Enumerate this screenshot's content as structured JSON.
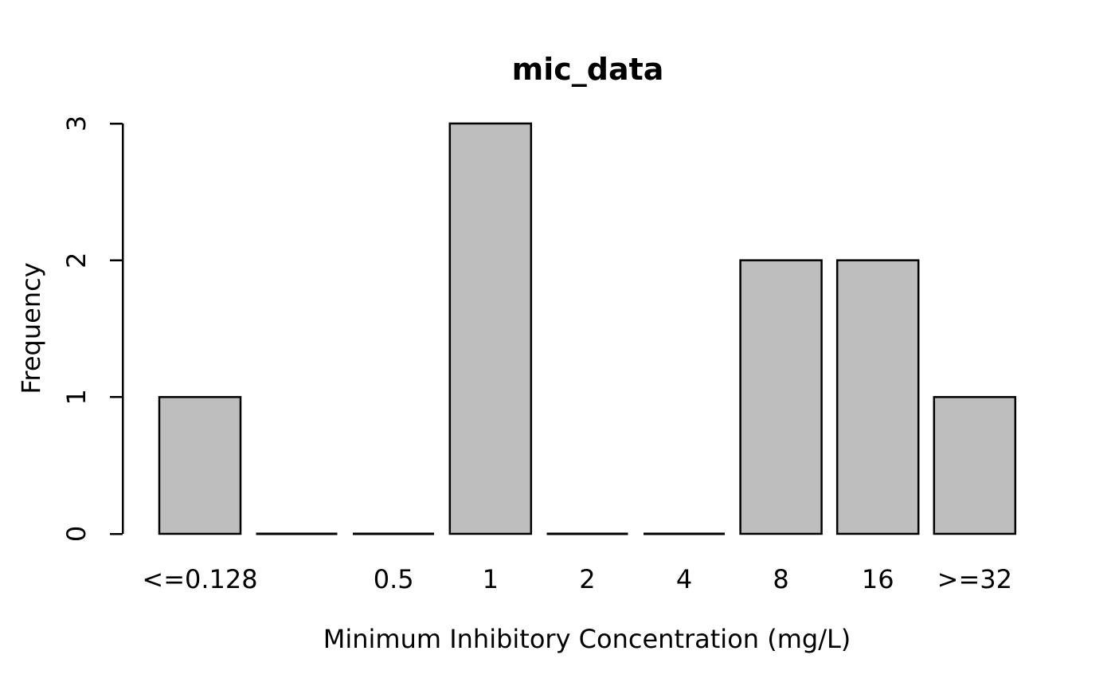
{
  "page": {
    "background": "#FFFFFF"
  },
  "chart_data": {
    "type": "bar",
    "title": "mic_data",
    "xlabel": "Minimum Inhibitory Concentration (mg/L)",
    "ylabel": "Frequency",
    "categories": [
      "<=0.128",
      "",
      "0.5",
      "1",
      "2",
      "4",
      "8",
      "16",
      ">=32"
    ],
    "values": [
      1,
      0,
      0,
      3,
      0,
      0,
      2,
      2,
      1
    ],
    "yticks": [
      0,
      1,
      2,
      3
    ],
    "ylim": [
      0,
      3
    ],
    "grid": false,
    "legend_position": "none",
    "bar_fill_color": "#BEBEBE",
    "bar_border_color": "#000000",
    "axis_color": "#000000",
    "text_color": "#000000"
  }
}
